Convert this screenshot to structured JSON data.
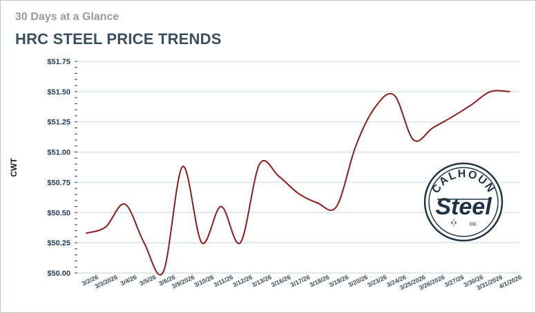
{
  "header": {
    "subtitle": "30 Days at a Glance",
    "title": "HRC STEEL PRICE TRENDS"
  },
  "logo": {
    "line1": "CALHOUN",
    "line2": "Steel",
    "mark": "CO."
  },
  "colors": {
    "line": "#8b1a1a",
    "grid": "#dfe8ec",
    "title": "#3a4e5c",
    "logo": "#1e3346"
  },
  "chart_data": {
    "type": "line",
    "ylabel": "CWT",
    "ylim": [
      50.0,
      51.75
    ],
    "yticks": [
      "$50.00",
      "$50.25",
      "$50.50",
      "$50.75",
      "$51.00",
      "$51.25",
      "$51.50",
      "$51.75"
    ],
    "grid": true,
    "categories": [
      "3/2/26",
      "3/3/2026",
      "3/4/26",
      "3/5/26",
      "3/6/26",
      "3/9/2026",
      "3/10/26",
      "3/11/26",
      "3/12/26",
      "3/13/26",
      "3/16/26",
      "3/17/26",
      "3/18/26",
      "3/19/26",
      "3/20/26",
      "3/23/26",
      "3/24/26",
      "3/25/2026",
      "3/26/2026",
      "3/27/26",
      "3/30/26",
      "3/31/2026",
      "4/1/2026"
    ],
    "series": [
      {
        "values": [
          50.33,
          50.38,
          50.57,
          50.25,
          50.01,
          50.88,
          50.25,
          50.55,
          50.25,
          50.9,
          50.8,
          50.66,
          50.58,
          50.55,
          51.05,
          51.37,
          51.47,
          51.1,
          51.2,
          51.29,
          51.39,
          51.5,
          51.5
        ]
      }
    ]
  }
}
